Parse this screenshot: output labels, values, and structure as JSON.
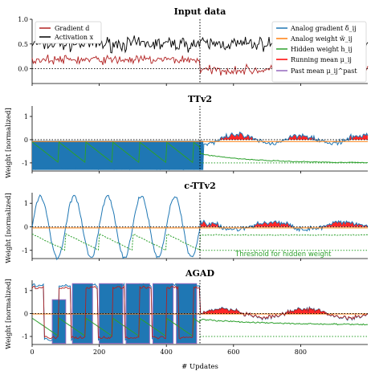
{
  "chart_data": [
    {
      "type": "line",
      "title": "Input data",
      "xlim": [
        0,
        1000
      ],
      "ylim": [
        -0.3,
        1.0
      ],
      "yticks": [
        "0.0",
        "0.5",
        "1.0"
      ],
      "ytick_values": [
        0,
        0.5,
        1.0
      ],
      "legend_left": [
        "Gradient d",
        "Activation x"
      ],
      "legend_right": [
        "Analog gradient δ̃_ij",
        "Analog weight w̃_ij",
        "Hidden weight h_ij",
        "Running mean μ_ij",
        "Past mean μ_ij^past"
      ],
      "series": [
        {
          "name": "Gradient d",
          "color": "#b22222",
          "levels": [
            {
              "x": [
                0,
                500
              ],
              "mean": 0.18,
              "noise": 0.08
            },
            {
              "x": [
                500,
                1000
              ],
              "mean": -0.03,
              "noise": 0.08
            }
          ]
        },
        {
          "name": "Activation x",
          "color": "#000000",
          "levels": [
            {
              "x": [
                0,
                1000
              ],
              "mean": 0.5,
              "noise": 0.12
            }
          ]
        }
      ],
      "hlines": [
        {
          "y": 0,
          "style": "dotted"
        }
      ],
      "vlines": [
        {
          "x": 500,
          "style": "dotted"
        }
      ]
    },
    {
      "type": "line",
      "title": "TTv2",
      "ylabel": "Weight [normalized]",
      "xlim": [
        0,
        1000
      ],
      "ylim": [
        -1.35,
        1.45
      ],
      "yticks": [
        "-1",
        "0",
        "1"
      ],
      "ytick_values": [
        -1,
        0,
        1
      ],
      "series": [
        {
          "name": "Analog gradient",
          "color": "#1f77b4",
          "filled_band": {
            "x": [
              0,
              510
            ],
            "lower": -1.3,
            "upper": -0.05
          },
          "later_mean": 0.05
        },
        {
          "name": "Analog weight",
          "color": "#ff7f0e",
          "segments": [
            {
              "x": [
                0,
                1000
              ],
              "y": -0.08
            }
          ]
        },
        {
          "name": "Hidden weight",
          "color": "#2ca02c",
          "sawtooth": {
            "period": 80,
            "low": -1.0,
            "high": -0.1,
            "x": [
              0,
              500
            ]
          },
          "decay_to": -1.0
        },
        {
          "name": "Running mean",
          "color": "#ff0000",
          "fill_above_zero": true
        }
      ],
      "hlines": [
        {
          "y": 0,
          "style": "dotted"
        },
        {
          "y": -1,
          "style": "dotted",
          "color": "#2ca02c"
        }
      ],
      "vlines": [
        {
          "x": 500,
          "style": "dotted"
        }
      ]
    },
    {
      "type": "line",
      "title": "c-TTv2",
      "ylabel": "Weight [normalized]",
      "xlim": [
        0,
        1000
      ],
      "ylim": [
        -1.35,
        1.45
      ],
      "yticks": [
        "-1",
        "0",
        "1"
      ],
      "ytick_values": [
        -1,
        0,
        1
      ],
      "annotations": [
        {
          "text": "Threshold for hidden weight",
          "x": 560,
          "y": -1.2,
          "color": "#2ca02c"
        }
      ],
      "series": [
        {
          "name": "Analog gradient",
          "color": "#1f77b4",
          "oscillation": {
            "period": 100,
            "amplitude": 1.3,
            "x": [
              0,
              500
            ]
          }
        },
        {
          "name": "Analog weight",
          "color": "#ff7f0e",
          "segments": [
            {
              "x": [
                0,
                1000
              ],
              "y": -0.05
            }
          ]
        },
        {
          "name": "Hidden weight",
          "color": "#2ca02c",
          "dotted_sawtooth": {
            "period": 100,
            "x": [
              0,
              500
            ]
          }
        },
        {
          "name": "Running mean",
          "color": "#ff0000",
          "fill_above_zero": true
        }
      ],
      "hlines": [
        {
          "y": 0,
          "style": "dotted"
        },
        {
          "y": -1,
          "style": "dotted",
          "color": "#2ca02c"
        }
      ],
      "vlines": [
        {
          "x": 500,
          "style": "dotted"
        }
      ]
    },
    {
      "type": "line",
      "title": "AGAD",
      "ylabel": "Weight [normalized]",
      "xlabel": "# Updates",
      "xlim": [
        0,
        1000
      ],
      "ylim": [
        -1.35,
        1.45
      ],
      "xticks": [
        "0",
        "200",
        "400",
        "600",
        "800"
      ],
      "xtick_values": [
        0,
        200,
        400,
        600,
        800
      ],
      "yticks": [
        "-1",
        "0",
        "1"
      ],
      "ytick_values": [
        -1,
        0,
        1
      ],
      "series": [
        {
          "name": "Analog gradient",
          "color": "#1f77b4",
          "blocks": [
            {
              "x": [
                50,
                100
              ],
              "low": -1.3,
              "high": 0.6
            },
            {
              "x": [
                120,
                180
              ],
              "low": -1.3,
              "high": 1.3
            },
            {
              "x": [
                200,
                270
              ],
              "low": -1.3,
              "high": 1.3
            },
            {
              "x": [
                280,
                350
              ],
              "low": -1.3,
              "high": 1.3
            },
            {
              "x": [
                360,
                420
              ],
              "low": -1.3,
              "high": 1.3
            },
            {
              "x": [
                430,
                490
              ],
              "low": -1.3,
              "high": 1.3
            }
          ]
        },
        {
          "name": "Analog weight",
          "color": "#ff7f0e",
          "segments": [
            {
              "x": [
                0,
                1000
              ],
              "y": -0.02
            }
          ]
        },
        {
          "name": "Hidden weight",
          "color": "#2ca02c",
          "decay_to": -0.5
        },
        {
          "name": "Running mean",
          "color": "#b22222"
        },
        {
          "name": "Past mean",
          "color": "#9467bd"
        }
      ],
      "hlines": [
        {
          "y": 0,
          "style": "dotted"
        },
        {
          "y": -1,
          "style": "dotted",
          "color": "#2ca02c"
        }
      ],
      "vlines": [
        {
          "x": 500,
          "style": "dotted"
        }
      ]
    }
  ]
}
